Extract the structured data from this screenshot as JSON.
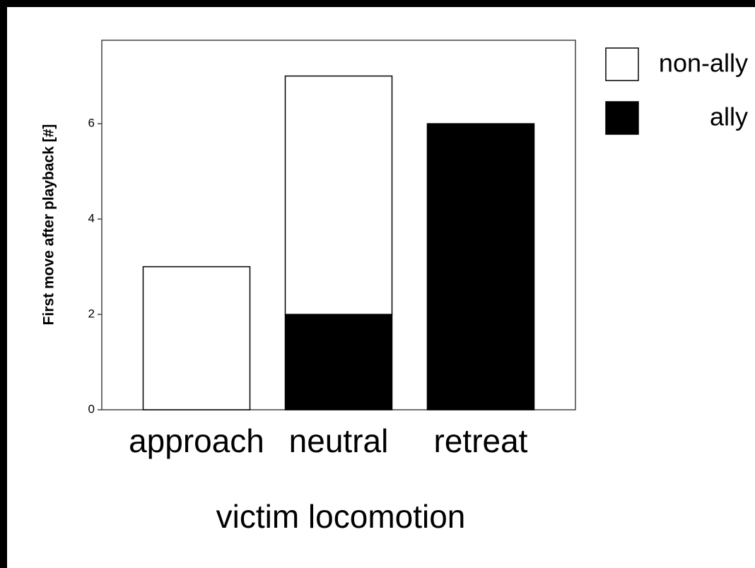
{
  "chart_data": {
    "type": "stacked-bar",
    "categories": [
      "approach",
      "neutral",
      "retreat"
    ],
    "series": [
      {
        "name": "ally",
        "color": "#000000",
        "values": [
          0,
          2,
          6
        ]
      },
      {
        "name": "non-ally",
        "color": "#ffffff",
        "values": [
          3,
          5,
          0
        ]
      }
    ],
    "y_label": "First move after playback [#]",
    "x_label": "victim locomotion",
    "ylim": [
      0,
      7.75
    ],
    "yticks": [
      0,
      2,
      4,
      6
    ],
    "legend": "top-right"
  }
}
